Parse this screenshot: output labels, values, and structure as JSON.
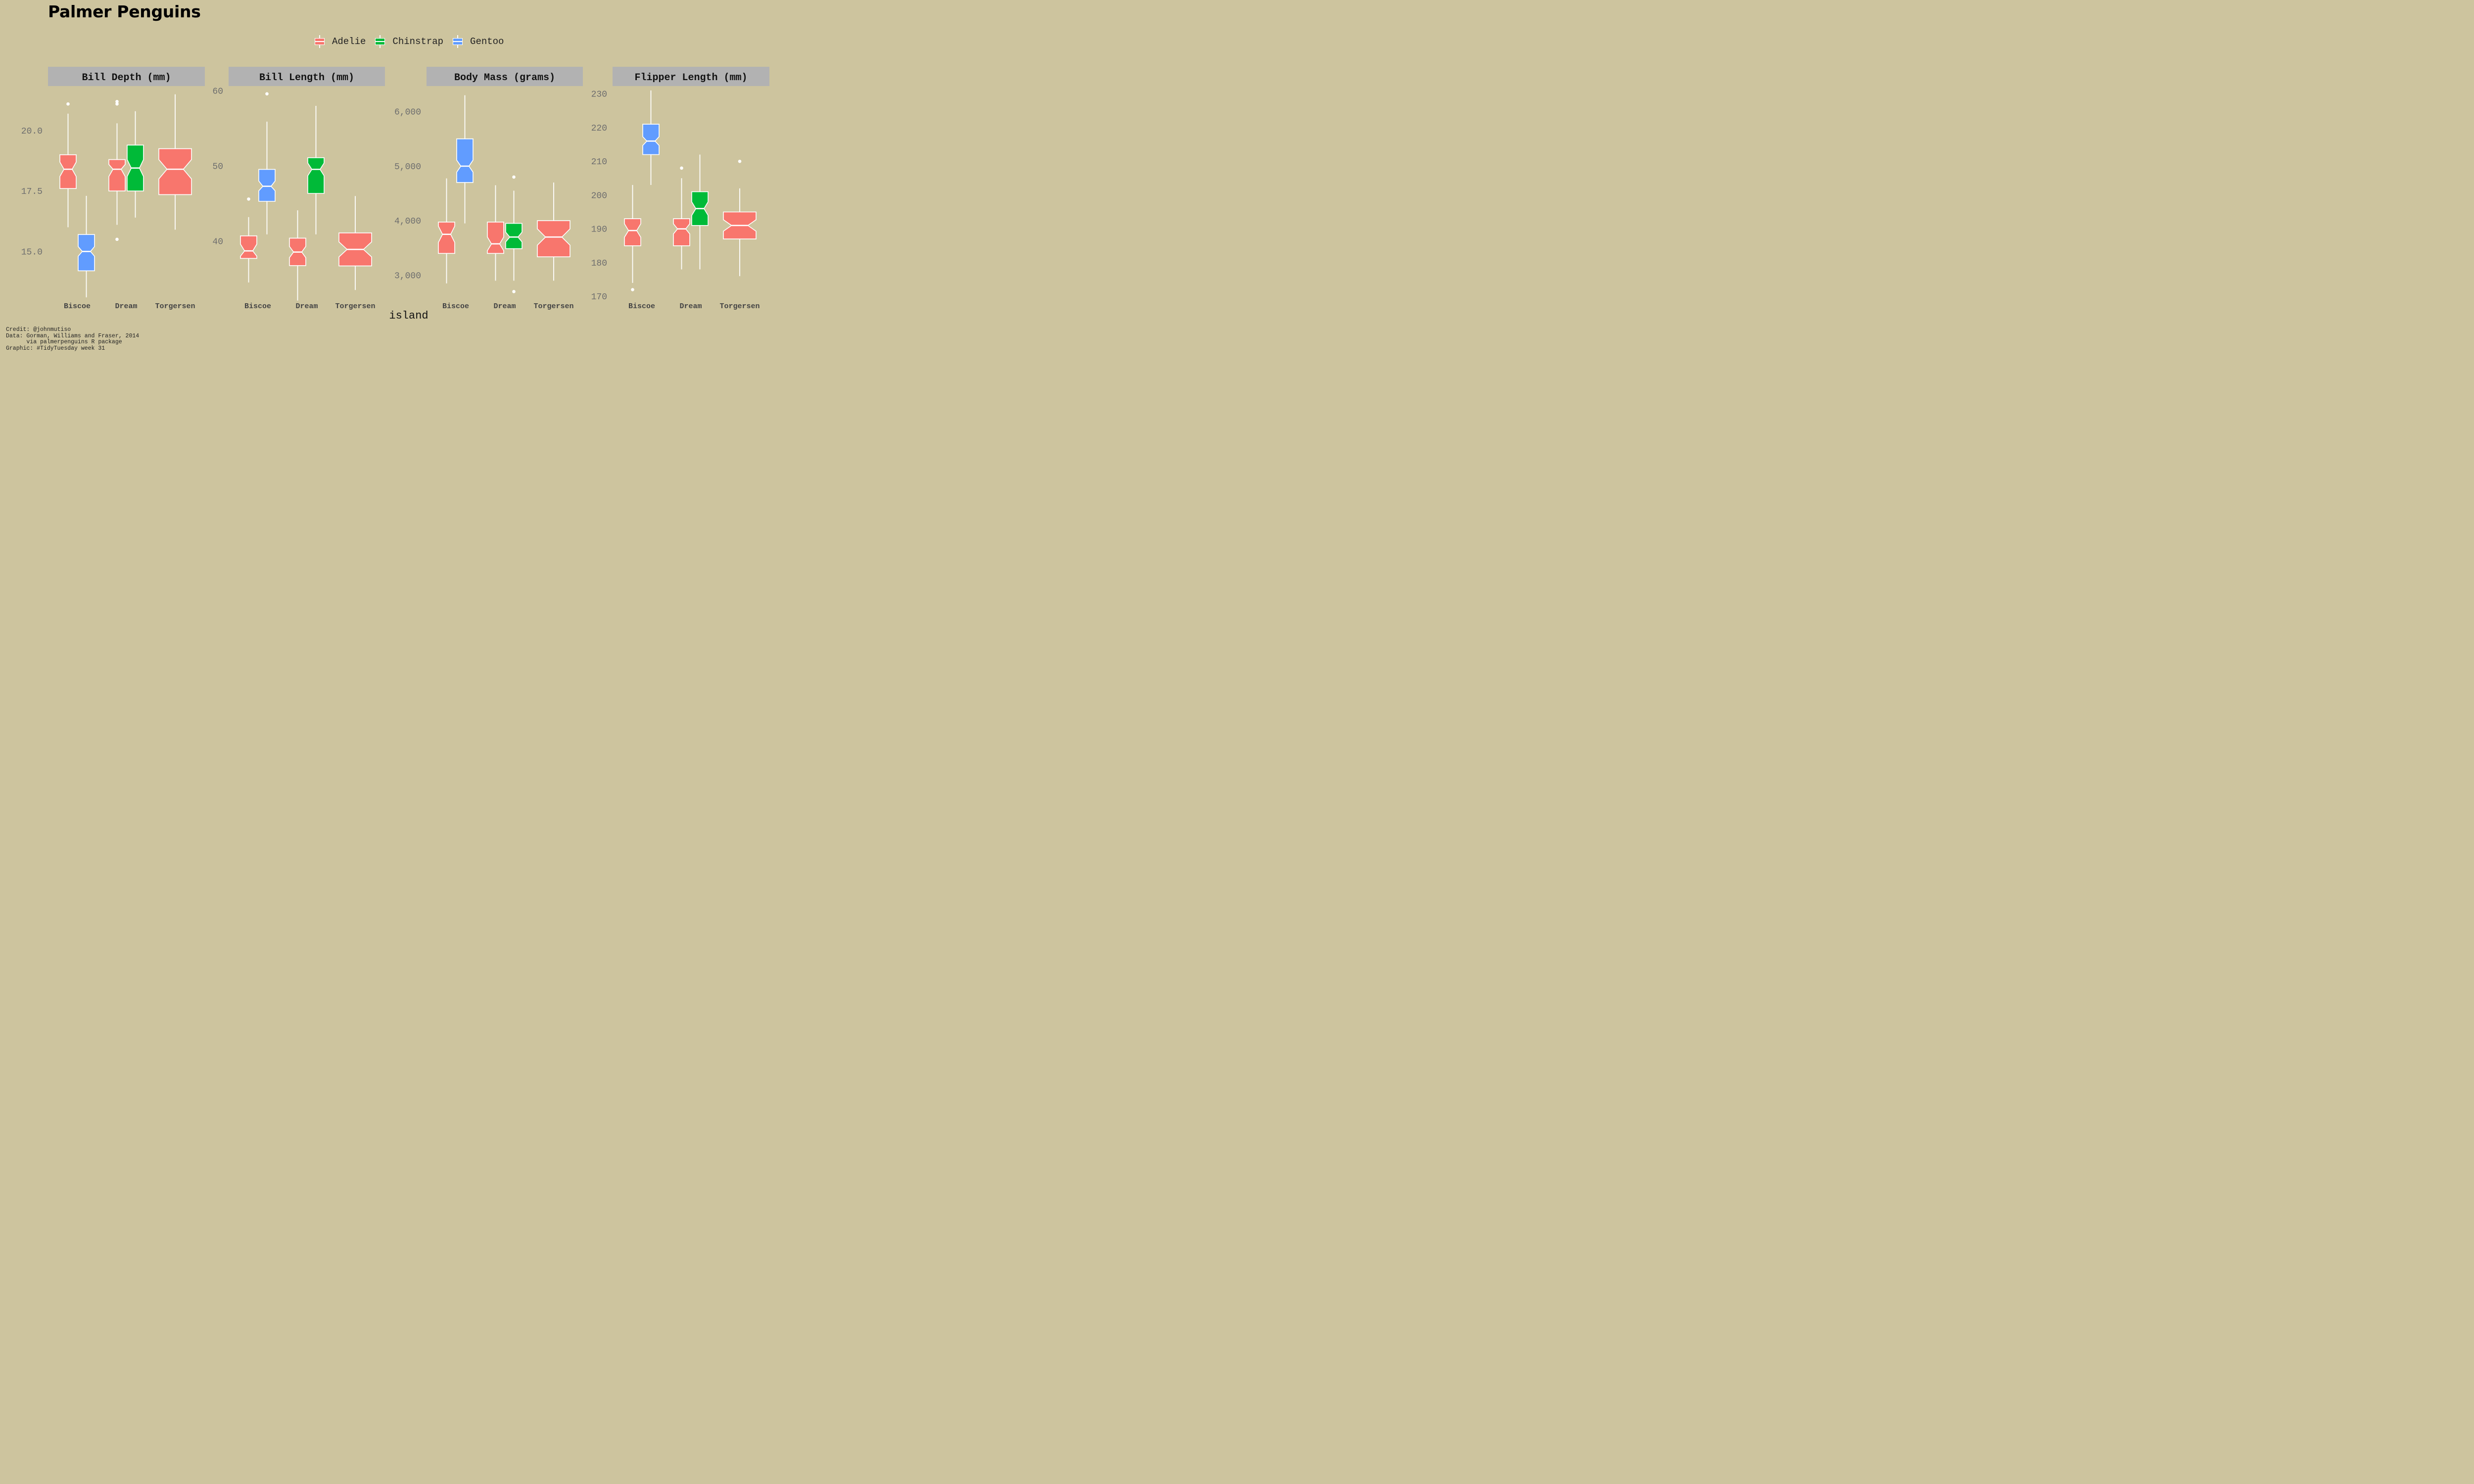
{
  "title": "Palmer Penguins",
  "legend": [
    {
      "label": "Adelie",
      "color": "#F8766D"
    },
    {
      "label": "Chinstrap",
      "color": "#00BA38"
    },
    {
      "label": "Gentoo",
      "color": "#619CFF"
    }
  ],
  "x_axis_title": "island",
  "caption": [
    "Credit: @johnmutiso",
    "Data: Gorman, Williams and Fraser, 2014",
    "      via palmerpenguins R package",
    "Graphic: #TidyTuesday week 31"
  ],
  "colors": {
    "background": "#CDC49E",
    "strip": "#B2B2B2",
    "box_line": "#FFFFFF",
    "tick_label": "#6E6E6E"
  },
  "chart_data": [
    {
      "type": "boxplot",
      "title": "Bill Depth (mm)",
      "categories": [
        "Biscoe",
        "Dream",
        "Torgersen"
      ],
      "ylim": [
        13.0,
        21.8
      ],
      "yticks": [
        15.0,
        17.5,
        20.0
      ],
      "ytick_labels": [
        "15.0",
        "17.5",
        "20.0"
      ],
      "boxes": [
        {
          "island": "Biscoe",
          "species": "Adelie",
          "whisker_low": 16.0,
          "q1": 17.6,
          "median": 18.4,
          "q3": 19.0,
          "whisker_high": 20.7,
          "notch": [
            18.1,
            18.7
          ],
          "outliers": [
            21.1
          ]
        },
        {
          "island": "Biscoe",
          "species": "Gentoo",
          "whisker_low": 13.1,
          "q1": 14.2,
          "median": 15.0,
          "q3": 15.7,
          "whisker_high": 17.3,
          "notch": [
            14.8,
            15.2
          ],
          "outliers": []
        },
        {
          "island": "Dream",
          "species": "Adelie",
          "whisker_low": 16.1,
          "q1": 17.5,
          "median": 18.4,
          "q3": 18.8,
          "whisker_high": 20.3,
          "notch": [
            18.1,
            18.6
          ],
          "outliers": [
            21.1,
            21.2,
            15.5
          ]
        },
        {
          "island": "Dream",
          "species": "Chinstrap",
          "whisker_low": 16.4,
          "q1": 17.5,
          "median": 18.45,
          "q3": 19.4,
          "whisker_high": 20.8,
          "notch": [
            18.1,
            18.8
          ],
          "outliers": []
        },
        {
          "island": "Torgersen",
          "species": "Adelie",
          "whisker_low": 15.9,
          "q1": 17.35,
          "median": 18.4,
          "q3": 19.25,
          "whisker_high": 21.5,
          "notch": [
            18.0,
            18.8
          ],
          "outliers": []
        }
      ]
    },
    {
      "type": "boxplot",
      "title": "Bill Length (mm)",
      "categories": [
        "Biscoe",
        "Dream",
        "Torgersen"
      ],
      "ylim": [
        32.2,
        60.5
      ],
      "yticks": [
        40,
        50,
        60
      ],
      "ytick_labels": [
        "40",
        "50",
        "60"
      ],
      "boxes": [
        {
          "island": "Biscoe",
          "species": "Adelie",
          "whisker_low": 34.5,
          "q1": 37.7,
          "median": 38.7,
          "q3": 40.7,
          "whisker_high": 43.2,
          "notch": [
            38.0,
            39.6
          ],
          "outliers": [
            45.6
          ]
        },
        {
          "island": "Biscoe",
          "species": "Gentoo",
          "whisker_low": 40.9,
          "q1": 45.3,
          "median": 47.3,
          "q3": 49.55,
          "whisker_high": 55.9,
          "notch": [
            46.7,
            48.0
          ],
          "outliers": [
            59.6
          ]
        },
        {
          "island": "Dream",
          "species": "Adelie",
          "whisker_low": 32.1,
          "q1": 36.75,
          "median": 38.55,
          "q3": 40.4,
          "whisker_high": 44.1,
          "notch": [
            37.8,
            39.3
          ],
          "outliers": []
        },
        {
          "island": "Dream",
          "species": "Chinstrap",
          "whisker_low": 40.9,
          "q1": 46.35,
          "median": 49.55,
          "q3": 51.1,
          "whisker_high": 58.0,
          "notch": [
            48.7,
            50.4
          ],
          "outliers": []
        },
        {
          "island": "Torgersen",
          "species": "Adelie",
          "whisker_low": 33.5,
          "q1": 36.7,
          "median": 38.9,
          "q3": 41.1,
          "whisker_high": 46.0,
          "notch": [
            37.9,
            39.9
          ],
          "outliers": []
        }
      ]
    },
    {
      "type": "boxplot",
      "title": "Body Mass (grams)",
      "categories": [
        "Biscoe",
        "Dream",
        "Torgersen"
      ],
      "ylim": [
        2550,
        6450
      ],
      "yticks": [
        3000,
        4000,
        5000,
        6000
      ],
      "ytick_labels": [
        "3,000",
        "4,000",
        "5,000",
        "6,000"
      ],
      "boxes": [
        {
          "island": "Biscoe",
          "species": "Adelie",
          "whisker_low": 2850,
          "q1": 3400,
          "median": 3750,
          "q3": 3975,
          "whisker_high": 4775,
          "notch": [
            3600,
            3900
          ],
          "outliers": []
        },
        {
          "island": "Biscoe",
          "species": "Gentoo",
          "whisker_low": 3950,
          "q1": 4700,
          "median": 5000,
          "q3": 5500,
          "whisker_high": 6300,
          "notch": [
            4890,
            5110
          ],
          "outliers": []
        },
        {
          "island": "Dream",
          "species": "Adelie",
          "whisker_low": 2900,
          "q1": 3400,
          "median": 3575,
          "q3": 3975,
          "whisker_high": 4650,
          "notch": [
            3450,
            3700
          ],
          "outliers": []
        },
        {
          "island": "Dream",
          "species": "Chinstrap",
          "whisker_low": 2900,
          "q1": 3487,
          "median": 3700,
          "q3": 3950,
          "whisker_high": 4550,
          "notch": [
            3610,
            3790
          ],
          "outliers": [
            4800,
            2700
          ]
        },
        {
          "island": "Torgersen",
          "species": "Adelie",
          "whisker_low": 2900,
          "q1": 3337,
          "median": 3700,
          "q3": 4000,
          "whisker_high": 4700,
          "notch": [
            3550,
            3850
          ],
          "outliers": []
        }
      ]
    },
    {
      "type": "boxplot",
      "title": "Flipper Length (mm)",
      "categories": [
        "Biscoe",
        "Dream",
        "Torgersen"
      ],
      "ylim": [
        169,
        232
      ],
      "yticks": [
        170,
        180,
        190,
        200,
        210,
        220,
        230
      ],
      "ytick_labels": [
        "170",
        "180",
        "190",
        "200",
        "210",
        "220",
        "230"
      ],
      "boxes": [
        {
          "island": "Biscoe",
          "species": "Adelie",
          "whisker_low": 174,
          "q1": 185,
          "median": 189.5,
          "q3": 193,
          "whisker_high": 203,
          "notch": [
            187.5,
            191.5
          ],
          "outliers": [
            172
          ]
        },
        {
          "island": "Biscoe",
          "species": "Gentoo",
          "whisker_low": 203,
          "q1": 212,
          "median": 216,
          "q3": 221,
          "whisker_high": 231,
          "notch": [
            214.7,
            217.3
          ],
          "outliers": []
        },
        {
          "island": "Dream",
          "species": "Adelie",
          "whisker_low": 178,
          "q1": 185,
          "median": 190,
          "q3": 193,
          "whisker_high": 205,
          "notch": [
            188.5,
            191.5
          ],
          "outliers": [
            208
          ]
        },
        {
          "island": "Dream",
          "species": "Chinstrap",
          "whisker_low": 178,
          "q1": 191,
          "median": 196,
          "q3": 201,
          "whisker_high": 212,
          "notch": [
            194,
            198
          ],
          "outliers": []
        },
        {
          "island": "Torgersen",
          "species": "Adelie",
          "whisker_low": 176,
          "q1": 187,
          "median": 191,
          "q3": 195,
          "whisker_high": 202,
          "notch": [
            189.3,
            192.7
          ],
          "outliers": [
            210
          ]
        }
      ]
    }
  ]
}
